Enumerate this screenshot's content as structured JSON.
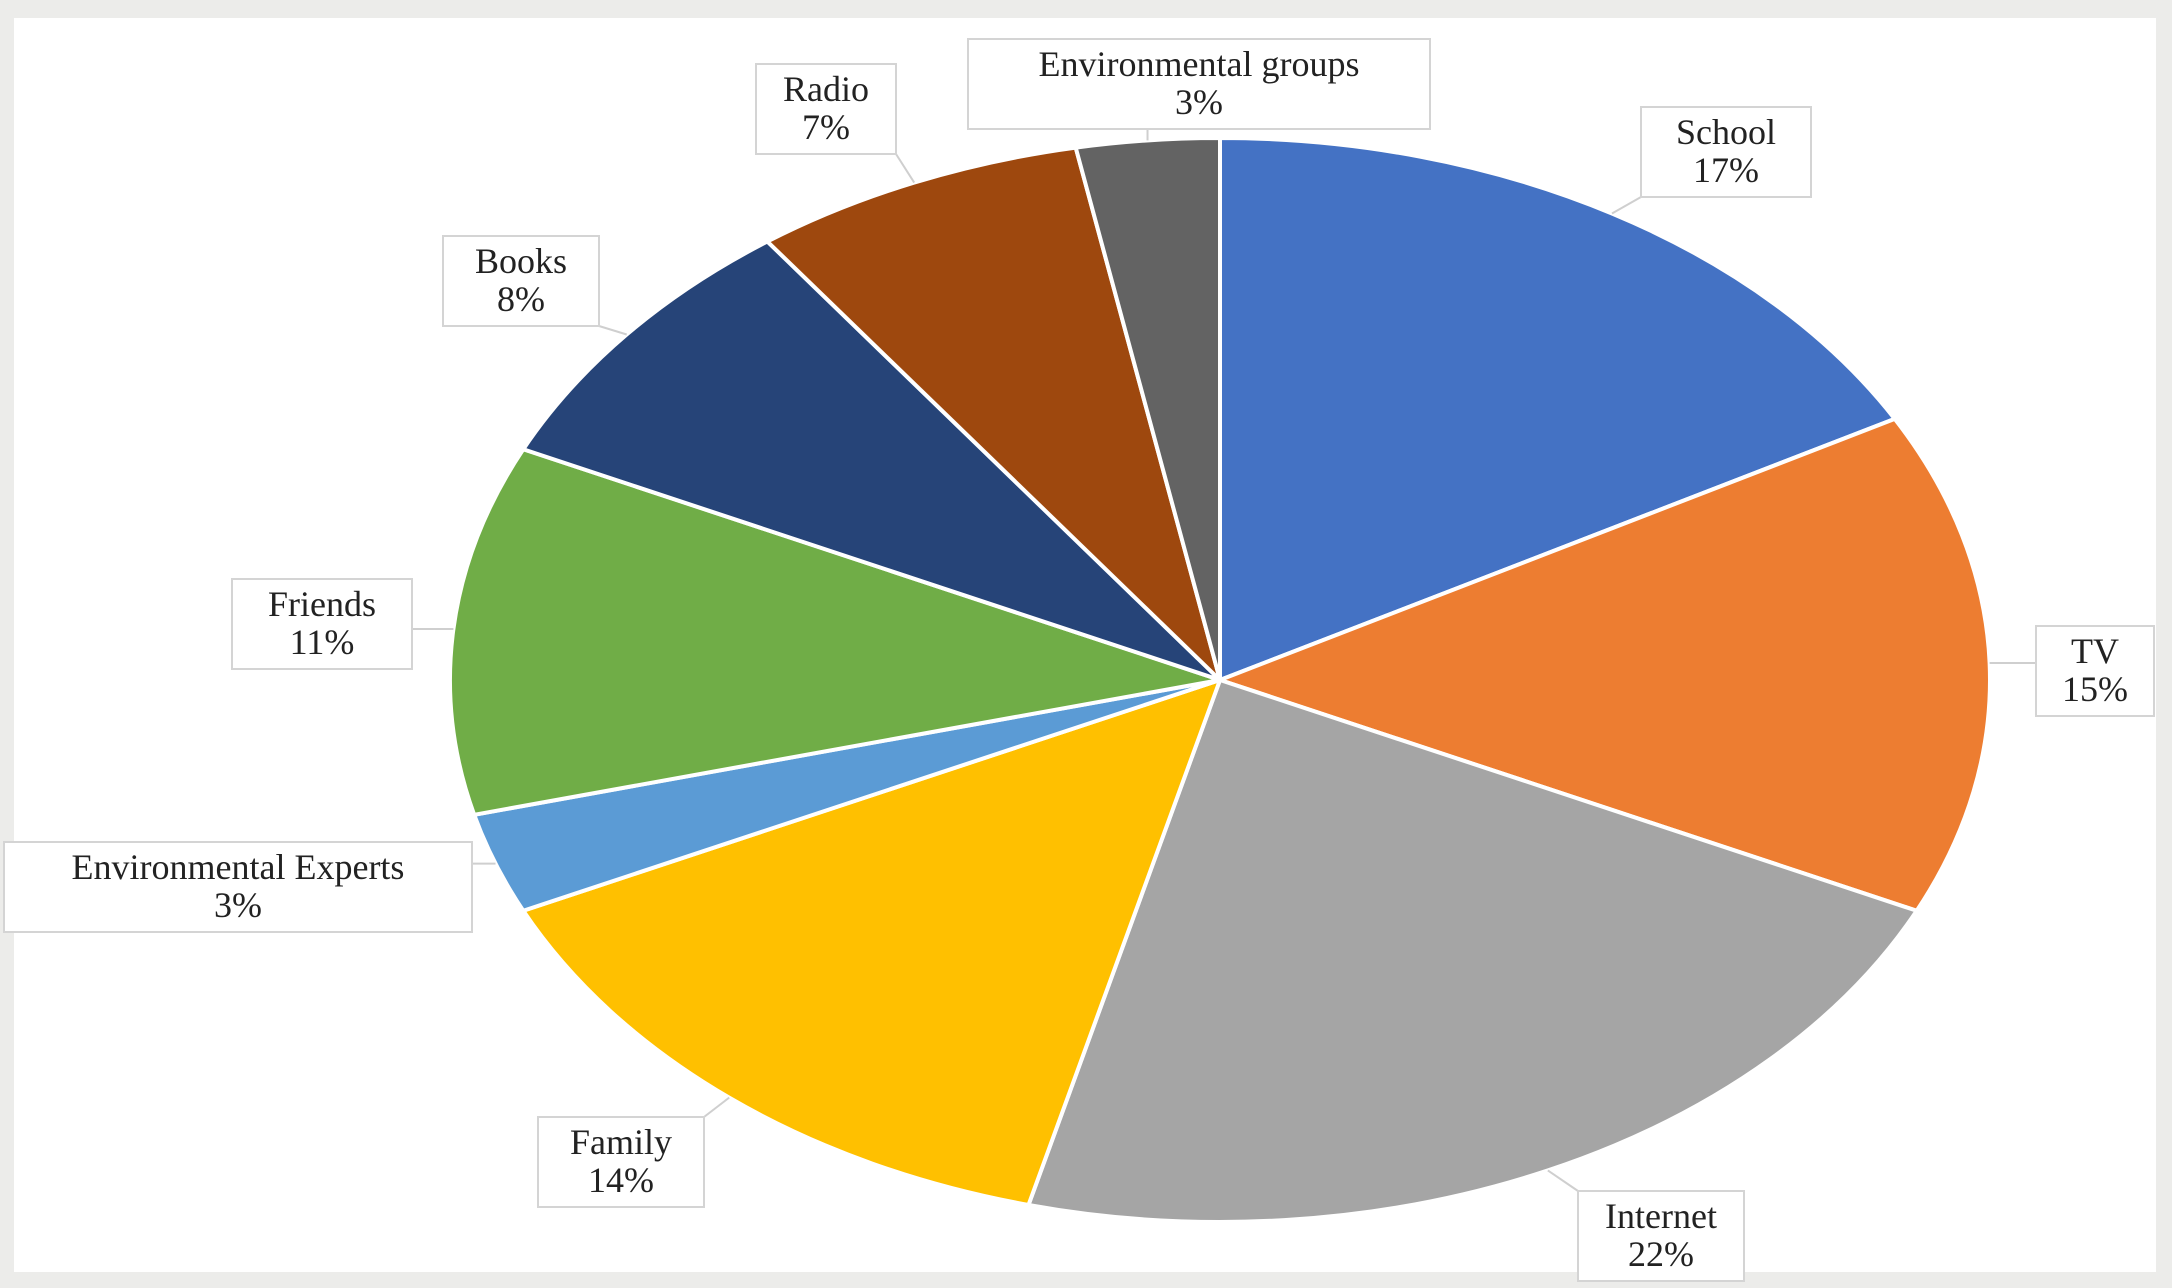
{
  "chart_data": {
    "type": "pie",
    "title": "",
    "start_angle_deg": 0,
    "direction": "clockwise",
    "legend": "none",
    "slices": [
      {
        "label": "School",
        "value": 17,
        "value_label": "17%",
        "color": "#4472C4"
      },
      {
        "label": "TV",
        "value": 15,
        "value_label": "15%",
        "color": "#ED7D31"
      },
      {
        "label": "Internet",
        "value": 22,
        "value_label": "22%",
        "color": "#A5A5A5"
      },
      {
        "label": "Family",
        "value": 14,
        "value_label": "14%",
        "color": "#FFC000"
      },
      {
        "label": "Environmental Experts",
        "value": 3,
        "value_label": "3%",
        "color": "#5B9BD5"
      },
      {
        "label": "Friends",
        "value": 11,
        "value_label": "11%",
        "color": "#70AD47"
      },
      {
        "label": "Books",
        "value": 8,
        "value_label": "8%",
        "color": "#264478"
      },
      {
        "label": "Radio",
        "value": 7,
        "value_label": "7%",
        "color": "#9E480E"
      },
      {
        "label": "Environmental groups",
        "value": 3,
        "value_label": "3%",
        "color": "#636363"
      }
    ]
  }
}
